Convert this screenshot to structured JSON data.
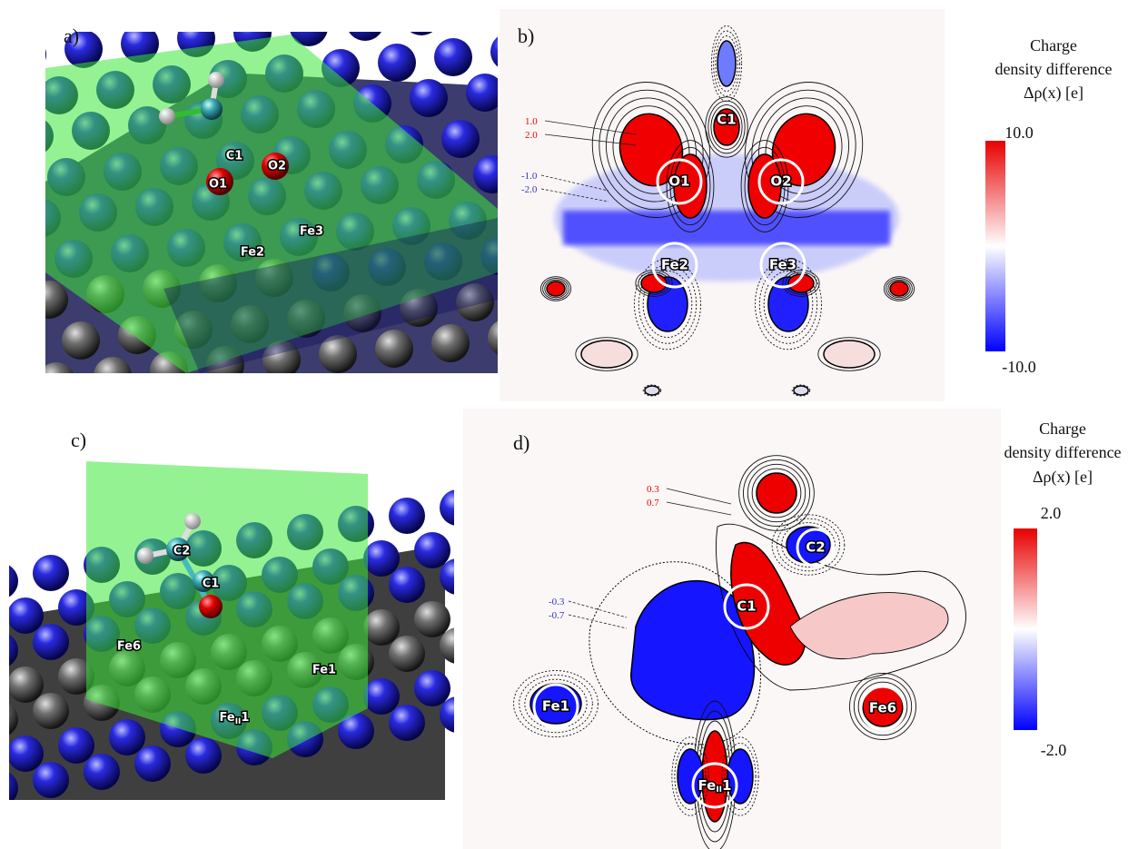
{
  "panels": {
    "a": {
      "label": "a)",
      "atoms": [
        "C1",
        "O1",
        "O2",
        "Fe2",
        "Fe3"
      ]
    },
    "b": {
      "label": "b)",
      "atoms": [
        "C1",
        "O1",
        "O2",
        "Fe2",
        "Fe3"
      ],
      "contours": {
        "positive": [
          "1.0",
          "2.0"
        ],
        "negative": [
          "-1.0",
          "-2.0"
        ]
      },
      "colorbar": {
        "title": [
          "Charge",
          "density difference",
          "Δρ(x) [e]"
        ],
        "max": "10.0",
        "min": "-10.0"
      }
    },
    "c": {
      "label": "c)",
      "atoms": [
        "C2",
        "C1",
        "Fe6",
        "Fe1",
        {
          "base": "Fe",
          "sub": "II",
          "suffix": "1"
        }
      ]
    },
    "d": {
      "label": "d)",
      "atoms": [
        "C2",
        "C1",
        "Fe1",
        "Fe6",
        {
          "base": "Fe",
          "sub": "II",
          "suffix": "1"
        }
      ],
      "contours": {
        "positive": [
          "0.3",
          "0.7"
        ],
        "negative": [
          "-0.3",
          "-0.7"
        ]
      },
      "colorbar": {
        "title": [
          "Charge",
          "density difference",
          "Δρ(x) [e]"
        ],
        "max": "2.0",
        "min": "-2.0"
      }
    }
  }
}
